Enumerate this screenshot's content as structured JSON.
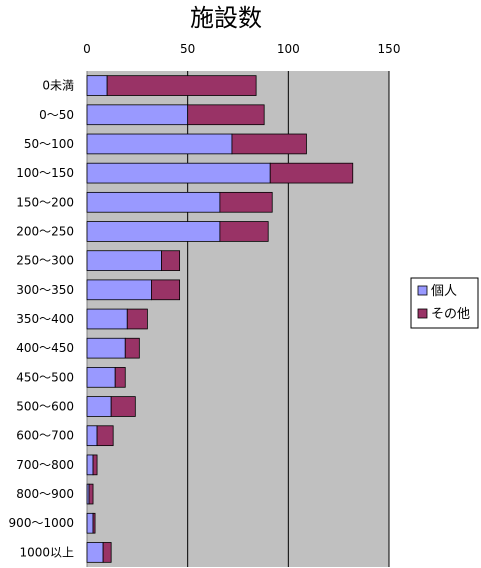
{
  "chart_data": {
    "type": "bar",
    "orientation": "horizontal",
    "stacked": true,
    "title": "施設数",
    "xlabel": "",
    "ylabel": "",
    "xlim": [
      0,
      150
    ],
    "x_ticks": [
      "0",
      "50",
      "100",
      "150"
    ],
    "grid": true,
    "legend_position": "right",
    "categories": [
      "0未満",
      "0〜50",
      "50〜100",
      "100〜150",
      "150〜200",
      "200〜250",
      "250〜300",
      "300〜350",
      "350〜400",
      "400〜450",
      "450〜500",
      "500〜600",
      "600〜700",
      "700〜800",
      "800〜900",
      "900〜1000",
      "1000以上"
    ],
    "series": [
      {
        "name": "個人",
        "color": "#9999ff",
        "values": [
          10,
          50,
          72,
          91,
          66,
          66,
          37,
          32,
          20,
          19,
          14,
          12,
          5,
          3,
          1,
          3,
          8
        ]
      },
      {
        "name": "その他",
        "color": "#993366",
        "values": [
          74,
          38,
          37,
          41,
          26,
          24,
          9,
          14,
          10,
          7,
          5,
          12,
          8,
          2,
          2,
          1,
          4
        ]
      }
    ],
    "plot_background": "#c0c0c0",
    "gridline_color": "#000000"
  }
}
